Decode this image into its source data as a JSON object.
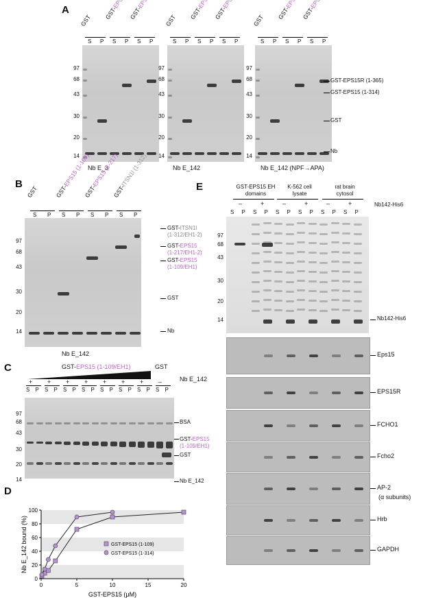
{
  "panels": {
    "A": {
      "letter": "A",
      "groups": [
        {
          "lanes": [
            "GST",
            "GST-EPS15 (1-314)",
            "GST-EPS15R (1-365)"
          ],
          "sp": [
            "S",
            "P",
            "S",
            "P",
            "S",
            "P"
          ],
          "caption": "Nb E_3"
        },
        {
          "lanes": [
            "GST",
            "GST-EPS15 (1-314)",
            "GST-EPS15R (1-365)"
          ],
          "sp": [
            "S",
            "P",
            "S",
            "P",
            "S",
            "P"
          ],
          "caption": "Nb E_142"
        },
        {
          "lanes": [
            "GST",
            "GST-EPS15 (1-314)",
            "GST-EPS15R (1-365)"
          ],
          "sp": [
            "S",
            "P",
            "S",
            "P",
            "S",
            "P"
          ],
          "caption": "Nb E_142 (NPF→APA)"
        }
      ],
      "mw": [
        "97",
        "68",
        "43",
        "30",
        "20",
        "14"
      ],
      "right_labels": [
        "GST-EPS15R (1-365)",
        "GST-EPS15 (1-314)",
        "GST",
        "Nb"
      ]
    },
    "B": {
      "letter": "B",
      "lanes": [
        "GST",
        "GST-EPS15 (1-109)",
        "GST-EPS15 (1-217)",
        "GST-ITSN1l (1-312)"
      ],
      "sp": [
        "S",
        "P",
        "S",
        "P",
        "S",
        "P",
        "S",
        "P"
      ],
      "mw": [
        "97",
        "68",
        "43",
        "30",
        "20",
        "14"
      ],
      "right_labels": {
        "itsn": "GST-ITSN1l",
        "itsn_sub": "(1-312/EH1-2)",
        "eps217": "GST-EPS15",
        "eps217_sub": "(1-217/EH1-2)",
        "eps109": "GST-EPS15",
        "eps109_sub": "(1-109/EH1)",
        "gst": "GST",
        "nb": "Nb"
      },
      "caption": "Nb E_142"
    },
    "C": {
      "letter": "C",
      "header": "GST-EPS15 (1-109/EH1)",
      "header_gst": "GST",
      "nb_label": "Nb E_142",
      "plusminus": [
        "+",
        "+",
        "+",
        "+",
        "+",
        "+",
        "+",
        "–"
      ],
      "mw": [
        "97",
        "68",
        "43",
        "30",
        "20",
        "14"
      ],
      "right_labels": {
        "bsa": "BSA",
        "eps": "GST-EPS15",
        "eps_sub": "(1-109/EH1)",
        "gst": "GST",
        "nb": "Nb E_142"
      }
    },
    "D": {
      "letter": "D"
    },
    "E": {
      "letter": "E",
      "groups": [
        "GST-EPS15 EH domains",
        "K-562 cell lysate",
        "rat brain cytosol"
      ],
      "signs": [
        "–",
        "+",
        "–",
        "+",
        "–",
        "+"
      ],
      "nb_label": "Nb142-His6",
      "mw": [
        "97",
        "68",
        "43",
        "30",
        "20",
        "14"
      ],
      "right_label": "Nb142-His6",
      "blots": [
        "Eps15",
        "EPS15R",
        "FCHO1",
        "Fcho2",
        "AP-2",
        "Hrb",
        "GAPDH"
      ],
      "ap2_sub": "(α subunits)"
    }
  },
  "chart_data": {
    "type": "line",
    "title": "",
    "xlabel": "GST-EPS15 (μM)",
    "ylabel": "Nb E_142 bound (%)",
    "xlim": [
      0,
      20
    ],
    "ylim": [
      0,
      100
    ],
    "xticks": [
      0,
      5,
      10,
      15,
      20
    ],
    "yticks": [
      0,
      20,
      40,
      60,
      80,
      100
    ],
    "grid": "bands",
    "legend": "right",
    "series": [
      {
        "name": "GST-EPS15 (1-109)",
        "marker": "square",
        "color": "#b98fd6",
        "x": [
          0.1,
          0.5,
          1,
          2,
          5,
          10,
          20
        ],
        "y": [
          4,
          8,
          12,
          26,
          72,
          90,
          97
        ]
      },
      {
        "name": "GST-EPS15 (1-314)",
        "marker": "circle",
        "color": "#b98fd6",
        "x": [
          0.1,
          0.5,
          1,
          2,
          5,
          10
        ],
        "y": [
          6,
          14,
          28,
          48,
          90,
          97
        ]
      }
    ]
  }
}
